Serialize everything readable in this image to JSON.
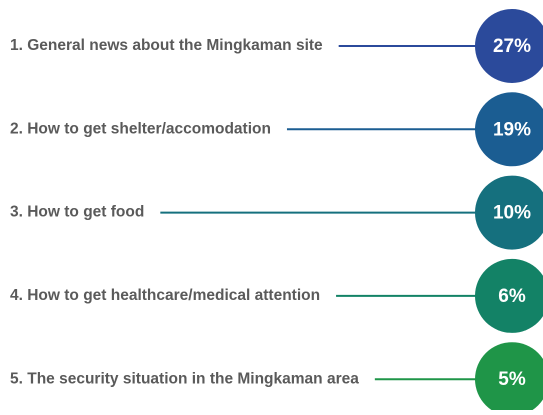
{
  "items": [
    {
      "label": "1. General news about the Mingkaman site",
      "value": "27%",
      "color": "#2b4a9b"
    },
    {
      "label": "2. How to get shelter/accomodation",
      "value": "19%",
      "color": "#1b5d92"
    },
    {
      "label": "3. How to get food",
      "value": "10%",
      "color": "#15707e"
    },
    {
      "label": "4. How to get healthcare/medical attention",
      "value": "6%",
      "color": "#138266"
    },
    {
      "label": "5. The security situation in the Mingkaman area",
      "value": "5%",
      "color": "#1f9548"
    }
  ]
}
